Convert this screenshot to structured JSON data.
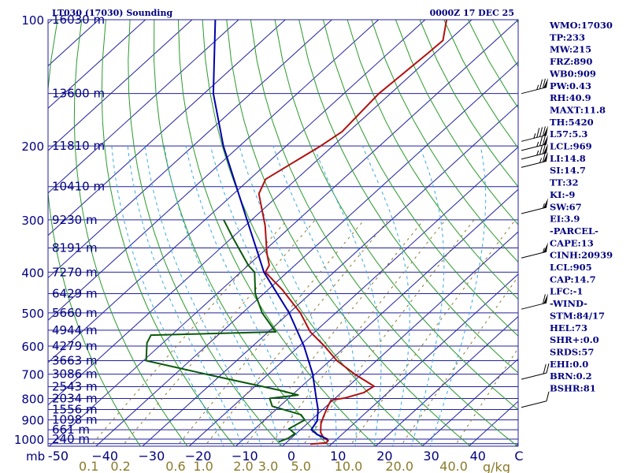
{
  "header": {
    "station": "LT030 (17030) Sounding",
    "valid_time": "0000Z 17 DEC 25"
  },
  "chart_data": {
    "type": "line",
    "plot_kind": "Skew-T log-P sounding",
    "pressure_axis": {
      "unit": "mb",
      "ticks": [
        100,
        200,
        300,
        400,
        500,
        600,
        700,
        800,
        900,
        1000
      ],
      "range": [
        100,
        1050
      ]
    },
    "temperature_axis": {
      "unit": "°C",
      "ticks": [
        -50,
        -40,
        -30,
        -20,
        -10,
        0,
        10,
        20,
        30,
        40
      ],
      "tick_labels": [
        "-50",
        "−40",
        "−30",
        "−20",
        "−10",
        "0",
        "10",
        "20",
        "30",
        "40"
      ],
      "end_label": "C"
    },
    "mixing_ratio_axis": {
      "unit": "g/kg",
      "ticks": [
        0.1,
        0.2,
        0.6,
        1.0,
        2.0,
        3.0,
        5.0,
        10.0,
        20.0,
        40.0
      ],
      "tick_labels": [
        "0.1",
        "0.2",
        "0.6",
        "1.0",
        "2.0",
        "3.0",
        "5.0",
        "10.0",
        "20.0",
        "40.0"
      ]
    },
    "height_labels": [
      {
        "p": 100,
        "label": "16030 m"
      },
      {
        "p": 150,
        "label": "13600 m"
      },
      {
        "p": 200,
        "label": "11810 m"
      },
      {
        "p": 250,
        "label": "10410 m"
      },
      {
        "p": 300,
        "label": "9230 m"
      },
      {
        "p": 350,
        "label": "8191 m"
      },
      {
        "p": 400,
        "label": "7270 m"
      },
      {
        "p": 450,
        "label": "6429 m"
      },
      {
        "p": 500,
        "label": "5660 m"
      },
      {
        "p": 550,
        "label": "4944 m"
      },
      {
        "p": 600,
        "label": "4279 m"
      },
      {
        "p": 650,
        "label": "3663 m"
      },
      {
        "p": 700,
        "label": "3086 m"
      },
      {
        "p": 750,
        "label": "2543 m"
      },
      {
        "p": 800,
        "label": "2034 m"
      },
      {
        "p": 850,
        "label": "1556 m"
      },
      {
        "p": 900,
        "label": "1098 m"
      },
      {
        "p": 950,
        "label": "661 m"
      },
      {
        "p": 1000,
        "label": "240 m"
      }
    ],
    "grid": true,
    "series": [
      {
        "role": "temperature",
        "color": "#b01010",
        "points": [
          {
            "p": 1028,
            "t": 5.5
          },
          {
            "p": 1021,
            "t": 8.6
          },
          {
            "p": 1008,
            "t": 8.5
          },
          {
            "p": 995,
            "t": 7.0
          },
          {
            "p": 965,
            "t": 5.0
          },
          {
            "p": 920,
            "t": 3.0
          },
          {
            "p": 880,
            "t": 1.7
          },
          {
            "p": 830,
            "t": 0.2
          },
          {
            "p": 808,
            "t": -0.4
          },
          {
            "p": 798,
            "t": 2.0
          },
          {
            "p": 775,
            "t": 4.8
          },
          {
            "p": 748,
            "t": 5.5
          },
          {
            "p": 700,
            "t": -1.5
          },
          {
            "p": 650,
            "t": -8.5
          },
          {
            "p": 600,
            "t": -14.6
          },
          {
            "p": 555,
            "t": -21.0
          },
          {
            "p": 500,
            "t": -27.6
          },
          {
            "p": 440,
            "t": -37.0
          },
          {
            "p": 400,
            "t": -44.7
          },
          {
            "p": 385,
            "t": -45.5
          },
          {
            "p": 360,
            "t": -48.9
          },
          {
            "p": 310,
            "t": -55.7
          },
          {
            "p": 260,
            "t": -64.6
          },
          {
            "p": 240,
            "t": -66.6
          },
          {
            "p": 220,
            "t": -64.7
          },
          {
            "p": 200,
            "t": -62.6
          },
          {
            "p": 185,
            "t": -61.4
          },
          {
            "p": 165,
            "t": -62.0
          },
          {
            "p": 150,
            "t": -62.5
          },
          {
            "p": 120,
            "t": -61.5
          },
          {
            "p": 112,
            "t": -61.3
          },
          {
            "p": 100,
            "t": -65.4
          }
        ]
      },
      {
        "role": "dewpoint",
        "color": "#0a5a0a",
        "points": [
          {
            "p": 1015,
            "t": -1.8
          },
          {
            "p": 995,
            "t": -0.6
          },
          {
            "p": 970,
            "t": -0.3
          },
          {
            "p": 945,
            "t": -2.7
          },
          {
            "p": 920,
            "t": -2.0
          },
          {
            "p": 900,
            "t": -1.4
          },
          {
            "p": 875,
            "t": -3.4
          },
          {
            "p": 835,
            "t": -11.6
          },
          {
            "p": 800,
            "t": -14.0
          },
          {
            "p": 785,
            "t": -8.7
          },
          {
            "p": 765,
            "t": -13.7
          },
          {
            "p": 700,
            "t": -33.4
          },
          {
            "p": 650,
            "t": -49.4
          },
          {
            "p": 590,
            "t": -53.4
          },
          {
            "p": 565,
            "t": -54.4
          },
          {
            "p": 555,
            "t": -28.4
          },
          {
            "p": 500,
            "t": -35.8
          },
          {
            "p": 450,
            "t": -41.8
          },
          {
            "p": 400,
            "t": -47.0
          },
          {
            "p": 385,
            "t": -50.0
          },
          {
            "p": 330,
            "t": -60.0
          },
          {
            "p": 300,
            "t": -66.0
          }
        ]
      },
      {
        "role": "parcel",
        "color": "#0000aa",
        "points": [
          {
            "p": 1000,
            "t": 8.0
          },
          {
            "p": 975,
            "t": 4.7
          },
          {
            "p": 950,
            "t": 2.3
          },
          {
            "p": 905,
            "t": 1.5
          },
          {
            "p": 850,
            "t": -1.0
          },
          {
            "p": 800,
            "t": -4.0
          },
          {
            "p": 700,
            "t": -10.5
          },
          {
            "p": 600,
            "t": -19.0
          },
          {
            "p": 500,
            "t": -30.0
          },
          {
            "p": 400,
            "t": -45.0
          },
          {
            "p": 300,
            "t": -61.0
          },
          {
            "p": 200,
            "t": -83.5
          },
          {
            "p": 150,
            "t": -98.0
          },
          {
            "p": 100,
            "t": -115.0
          }
        ]
      }
    ],
    "wind_barbs": [
      {
        "p": 150,
        "speed_kt": 75
      },
      {
        "p": 195,
        "speed_kt": 85
      },
      {
        "p": 205,
        "speed_kt": 75
      },
      {
        "p": 215,
        "speed_kt": 75
      },
      {
        "p": 225,
        "speed_kt": 65
      },
      {
        "p": 290,
        "speed_kt": 55
      },
      {
        "p": 370,
        "speed_kt": 55
      },
      {
        "p": 490,
        "speed_kt": 60
      },
      {
        "p": 720,
        "speed_kt": 20
      },
      {
        "p": 840,
        "speed_kt": 10
      }
    ]
  },
  "indices": [
    "WMO:17030",
    "TP:233",
    "MW:215",
    "FRZ:890",
    "WB0:909",
    "PW:0.43",
    "RH:40.9",
    "MAXT:11.8",
    "TH:5420",
    "L57:5.3",
    "LCL:969",
    "LI:14.8",
    "SI:14.7",
    "TT:32",
    "KI:-9",
    "SW:67",
    "EI:3.9",
    "-PARCEL-",
    "CAPE:13",
    "CINH:20939",
    "LCL:905",
    "CAP:14.7",
    "LFC:-1",
    "-WIND-",
    "STM:84/17",
    "HEL:73",
    "SHR+:0.0",
    "SRDS:57",
    "EHI:0.0",
    "BRN:0.2",
    "BSHR:81"
  ],
  "colors": {
    "isobar": "#2020a0",
    "isotherm": "#2020a0",
    "dry_adiabat": "#2a9a2a",
    "moist_adiabat": "#3aaae0",
    "mixing_ratio": "#8b7a2a",
    "text": "#000080",
    "axis_units": "mb",
    "mix_units": "g/kg"
  }
}
